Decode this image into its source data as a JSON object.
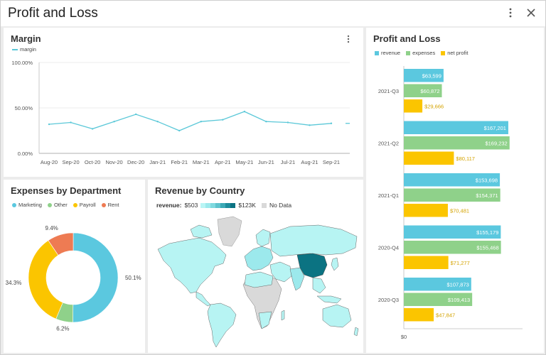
{
  "window": {
    "title": "Profit and Loss"
  },
  "margin_panel": {
    "title": "Margin",
    "legend": "margin",
    "color": "#5bc8d8",
    "y_ticks": [
      "100.00%",
      "50.00%",
      "0.00%"
    ]
  },
  "expenses_panel": {
    "title": "Expenses by Department",
    "legend": [
      {
        "label": "Marketing",
        "color": "#5bc8df"
      },
      {
        "label": "Other",
        "color": "#8fd18a"
      },
      {
        "label": "Payroll",
        "color": "#fbc500"
      },
      {
        "label": "Rent",
        "color": "#ee7b53"
      }
    ],
    "labels": [
      "50.1%",
      "6.2%",
      "34.3%",
      "9.4%"
    ]
  },
  "revenue_panel": {
    "title": "Revenue by Country",
    "scale_label": "revenue:",
    "scale_min": "$503",
    "scale_max": "$123K",
    "no_data": "No Data"
  },
  "pl_panel": {
    "title": "Profit and Loss",
    "legend": [
      {
        "label": "revenue",
        "color": "#5bc8df"
      },
      {
        "label": "expenses",
        "color": "#8fd18a"
      },
      {
        "label": "net profit",
        "color": "#fbc500"
      }
    ],
    "zero_label": "$0"
  },
  "chart_data": [
    {
      "type": "line",
      "title": "Margin",
      "x": [
        "Aug-20",
        "Sep-20",
        "Oct-20",
        "Nov-20",
        "Dec-20",
        "Jan-21",
        "Feb-21",
        "Mar-21",
        "Apr-21",
        "May-21",
        "Jun-21",
        "Jul-21",
        "Aug-21",
        "Sep-21"
      ],
      "series": [
        {
          "name": "margin",
          "values": [
            32,
            34,
            27,
            35,
            43,
            35,
            25,
            35,
            37,
            46,
            35,
            34,
            31,
            33
          ]
        }
      ],
      "ylim": [
        0,
        100
      ],
      "y_unit": "%"
    },
    {
      "type": "pie",
      "title": "Expenses by Department",
      "categories": [
        "Marketing",
        "Other",
        "Payroll",
        "Rent"
      ],
      "values": [
        50.1,
        6.2,
        34.3,
        9.4
      ]
    },
    {
      "type": "bar",
      "title": "Profit and Loss",
      "categories": [
        "2021-Q3",
        "2021-Q2",
        "2021-Q1",
        "2020-Q4",
        "2020-Q3"
      ],
      "series": [
        {
          "name": "revenue",
          "values": [
            63599,
            167201,
            153698,
            155179,
            107873
          ],
          "labels": [
            "$63,599",
            "$167,201",
            "$153,698",
            "$155,179",
            "$107,873"
          ]
        },
        {
          "name": "expenses",
          "values": [
            60872,
            169232,
            154371,
            155468,
            109413
          ],
          "labels": [
            "$60,872",
            "$169,232",
            "$154,371",
            "$155,468",
            "$109,413"
          ]
        },
        {
          "name": "net profit",
          "values": [
            29666,
            80117,
            70481,
            71277,
            47847
          ],
          "labels": [
            "$29,666",
            "$80,117",
            "$70,481",
            "$71,277",
            "$47,847"
          ]
        }
      ]
    }
  ]
}
